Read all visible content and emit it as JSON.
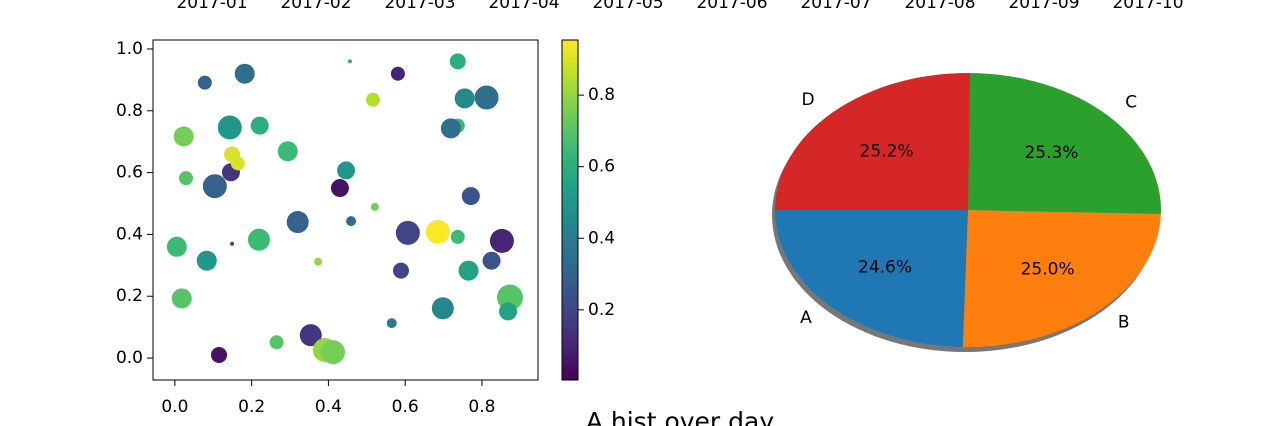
{
  "chart_data": [
    {
      "type": "date-axis",
      "xticks": [
        "2017-01",
        "2017-02",
        "2017-03",
        "2017-04",
        "2017-05",
        "2017-06",
        "2017-07",
        "2017-08",
        "2017-09",
        "2017-10"
      ]
    },
    {
      "type": "scatter",
      "cmap": "viridis",
      "x": [
        0.078,
        0.182,
        0.456,
        0.581,
        0.737,
        0.812,
        0.755,
        0.516,
        0.023,
        0.143,
        0.221,
        0.737,
        0.719,
        0.029,
        0.146,
        0.149,
        0.164,
        0.294,
        0.104,
        0.446,
        0.43,
        0.771,
        0.521,
        0.32,
        0.459,
        0.607,
        0.685,
        0.737,
        0.852,
        0.005,
        0.219,
        0.149,
        0.083,
        0.373,
        0.825,
        0.765,
        0.589,
        0.018,
        0.873,
        0.868,
        0.698,
        0.565,
        0.354,
        0.265,
        0.391,
        0.412,
        0.115
      ],
      "y": [
        0.891,
        0.92,
        0.96,
        0.92,
        0.96,
        0.843,
        0.84,
        0.836,
        0.717,
        0.746,
        0.752,
        0.752,
        0.743,
        0.582,
        0.601,
        0.659,
        0.63,
        0.669,
        0.556,
        0.607,
        0.55,
        0.524,
        0.489,
        0.44,
        0.443,
        0.405,
        0.408,
        0.392,
        0.379,
        0.36,
        0.383,
        0.37,
        0.315,
        0.312,
        0.315,
        0.283,
        0.283,
        0.193,
        0.196,
        0.151,
        0.161,
        0.113,
        0.074,
        0.051,
        0.026,
        0.019,
        0.01
      ],
      "sizes": [
        49,
        100,
        4,
        49,
        64,
        144,
        100,
        49,
        100,
        144,
        81,
        49,
        100,
        49,
        81,
        64,
        49,
        100,
        144,
        81,
        81,
        81,
        16,
        121,
        25,
        144,
        144,
        49,
        144,
        100,
        121,
        4,
        100,
        16,
        81,
        100,
        64,
        100,
        169,
        81,
        121,
        25,
        121,
        49,
        144,
        144,
        64
      ],
      "c": [
        0.3,
        0.35,
        0.6,
        0.1,
        0.6,
        0.35,
        0.45,
        0.85,
        0.75,
        0.5,
        0.6,
        0.65,
        0.35,
        0.7,
        0.15,
        0.9,
        0.9,
        0.65,
        0.3,
        0.5,
        0.05,
        0.25,
        0.75,
        0.3,
        0.35,
        0.2,
        0.95,
        0.65,
        0.1,
        0.65,
        0.65,
        0.2,
        0.5,
        0.8,
        0.25,
        0.55,
        0.2,
        0.7,
        0.7,
        0.55,
        0.45,
        0.4,
        0.15,
        0.7,
        0.8,
        0.75,
        0.05
      ],
      "xlim": [
        -0.057,
        0.946
      ],
      "ylim": [
        -0.071,
        1.029
      ],
      "xticks": [
        {
          "value": 0,
          "label": "0.0"
        },
        {
          "value": 0.2,
          "label": "0.2"
        },
        {
          "value": 0.4,
          "label": "0.4"
        },
        {
          "value": 0.6,
          "label": "0.6"
        },
        {
          "value": 0.8,
          "label": "0.8"
        }
      ],
      "yticks": [
        {
          "value": 0,
          "label": "0.0"
        },
        {
          "value": 0.2,
          "label": "0.2"
        },
        {
          "value": 0.4,
          "label": "0.4"
        },
        {
          "value": 0.6,
          "label": "0.6"
        },
        {
          "value": 0.8,
          "label": "0.8"
        },
        {
          "value": 1,
          "label": "1.0"
        }
      ],
      "clim": [
        0.004,
        0.954
      ],
      "cticks": [
        0.2,
        0.4,
        0.6,
        0.8
      ]
    },
    {
      "type": "pie",
      "categories": [
        "A",
        "B",
        "C",
        "D"
      ],
      "values": [
        24.6,
        25.0,
        25.3,
        25.2
      ],
      "value_labels": [
        "24.6%",
        "25.0%",
        "25.3%",
        "25.2%"
      ],
      "colors": [
        "#1f77b4",
        "#ff7f0e",
        "#2ca02c",
        "#d62728"
      ],
      "startangle": 180,
      "shadow": true
    },
    {
      "type": "hist",
      "title": "A hist over day"
    }
  ]
}
